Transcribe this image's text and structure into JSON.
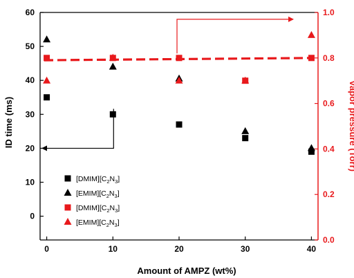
{
  "chart_data": {
    "type": "scatter",
    "title": "",
    "xlabel": "Amount of AMPZ (wt%)",
    "ylabel_left": "ID time (ms)",
    "ylabel_right": "Vapor pressure (Torr)",
    "xlim": [
      -1,
      41
    ],
    "ylim_left": [
      -7,
      60
    ],
    "ylim_right": [
      0.0,
      1.0
    ],
    "xticks": [
      "0",
      "10",
      "20",
      "30",
      "40"
    ],
    "yticks_left": [
      "0",
      "10",
      "20",
      "30",
      "40",
      "50",
      "60"
    ],
    "yticks_right": [
      "0.0",
      "0.2",
      "0.4",
      "0.6",
      "0.8",
      "1.0"
    ],
    "grid": false,
    "legend_position": "bottom-left",
    "series": [
      {
        "axis": "left",
        "marker": "square",
        "color": "#000000",
        "x": [
          0,
          10,
          20,
          30,
          40
        ],
        "y": [
          35,
          30,
          27,
          23,
          19
        ],
        "legend_main": "[DMIM][C",
        "legend_sub1": "2",
        "legend_mid": "N",
        "legend_sub2": "3",
        "legend_end": "]"
      },
      {
        "axis": "left",
        "marker": "triangle",
        "color": "#000000",
        "x": [
          0,
          10,
          20,
          30,
          40
        ],
        "y": [
          52,
          44,
          40.5,
          25,
          20
        ],
        "legend_main": "[EMIM][C",
        "legend_sub1": "2",
        "legend_mid": "N",
        "legend_sub2": "3",
        "legend_end": "]"
      },
      {
        "axis": "right",
        "marker": "square",
        "color": "#e8191c",
        "x": [
          0,
          10,
          20,
          30,
          40
        ],
        "y": [
          0.8,
          0.8,
          0.8,
          0.7,
          0.8
        ],
        "legend_main": "[DMIM][C",
        "legend_sub1": "2",
        "legend_mid": "N",
        "legend_sub2": "3",
        "legend_end": "]"
      },
      {
        "axis": "right",
        "marker": "triangle",
        "color": "#e8191c",
        "x": [
          0,
          10,
          20,
          30,
          40
        ],
        "y": [
          0.7,
          0.8,
          0.7,
          0.7,
          0.9
        ],
        "legend_main": "[EMIM][C",
        "legend_sub1": "2",
        "legend_mid": "N",
        "legend_sub2": "3",
        "legend_end": "]"
      }
    ],
    "trend_line": {
      "axis": "right",
      "style": "dashed",
      "color": "#e8191c",
      "x": [
        0,
        40
      ],
      "y": [
        0.79,
        0.8
      ]
    },
    "axis_colors": {
      "left": "#000000",
      "right": "#e8191c"
    },
    "annotations": [
      {
        "type": "arrow",
        "color": "#000000",
        "points": [
          [
            10,
            30
          ],
          [
            10,
            20
          ],
          [
            -1,
            20
          ]
        ],
        "meaning": "points to left axis"
      },
      {
        "type": "arrow",
        "color": "#e8191c",
        "points": [
          [
            20,
            40
          ],
          [
            20,
            0.97
          ],
          [
            41,
            0.97
          ]
        ],
        "meaning": "points to right axis"
      }
    ]
  }
}
